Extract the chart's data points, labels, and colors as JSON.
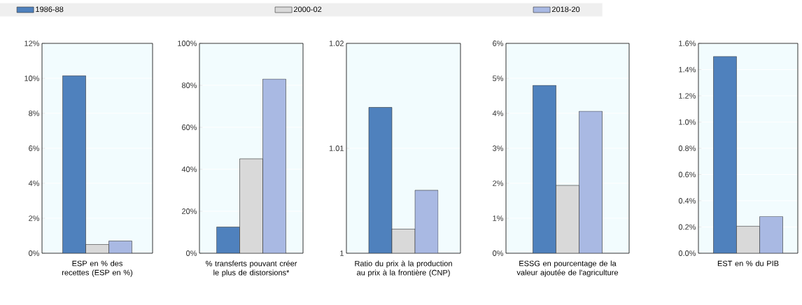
{
  "chart_data": [
    {
      "type": "bar",
      "xlabel": "ESP en % des recettes (ESP en %)",
      "categories": [
        null
      ],
      "legend": "top",
      "grid": "y",
      "series": [
        {
          "name": "1986-88",
          "color": "#4f81bd",
          "values": [
            10.15
          ]
        },
        {
          "name": "2000-02",
          "color": "#d9d9d9",
          "values": [
            0.5
          ]
        },
        {
          "name": "2018-20",
          "color": "#a9b9e3",
          "values": [
            0.7
          ]
        }
      ],
      "ylim": [
        0,
        12
      ],
      "yticks": [
        {
          "value": 0,
          "label": "0%"
        },
        {
          "value": 2,
          "label": "2%"
        },
        {
          "value": 4,
          "label": "4%"
        },
        {
          "value": 6,
          "label": "6%"
        },
        {
          "value": 8,
          "label": "8%"
        },
        {
          "value": 10,
          "label": "10%"
        },
        {
          "value": 12,
          "label": "12%"
        }
      ]
    },
    {
      "type": "bar",
      "xlabel": "% transferts pouvant créer le plus de distorsions*",
      "categories": [
        null
      ],
      "grid": "y",
      "series": [
        {
          "color": "#4f81bd",
          "values": [
            12.5
          ]
        },
        {
          "color": "#d9d9d9",
          "values": [
            45
          ]
        },
        {
          "color": "#a9b9e3",
          "values": [
            83
          ]
        }
      ],
      "ylim": [
        0,
        100
      ],
      "yticks": [
        {
          "value": 0,
          "label": "0%"
        },
        {
          "value": 20,
          "label": "20%"
        },
        {
          "value": 40,
          "label": "40%"
        },
        {
          "value": 60,
          "label": "60%"
        },
        {
          "value": 80,
          "label": "80%"
        },
        {
          "value": 100,
          "label": "100%"
        }
      ]
    },
    {
      "type": "bar",
      "xlabel": "Ratio du prix à la production au prix à la frontière (CNP)",
      "categories": [
        null
      ],
      "grid": "y",
      "series": [
        {
          "color": "#4f81bd",
          "values": [
            1.0139
          ]
        },
        {
          "color": "#d9d9d9",
          "values": [
            1.0023
          ]
        },
        {
          "color": "#a9b9e3",
          "values": [
            1.006
          ]
        }
      ],
      "ylim": [
        1,
        1.02
      ],
      "yticks": [
        1,
        1.01,
        1.02
      ]
    },
    {
      "type": "bar",
      "xlabel": "ESSG en pourcentage de la valeur ajoutée de l'agriculture",
      "categories": [
        null
      ],
      "grid": "y",
      "series": [
        {
          "color": "#4f81bd",
          "values": [
            4.8
          ]
        },
        {
          "color": "#d9d9d9",
          "values": [
            1.94
          ]
        },
        {
          "color": "#a9b9e3",
          "values": [
            4.06
          ]
        }
      ],
      "ylim": [
        0,
        6
      ],
      "yticks": [
        {
          "value": 0,
          "label": "0%"
        },
        {
          "value": 1,
          "label": "1%"
        },
        {
          "value": 2,
          "label": "2%"
        },
        {
          "value": 3,
          "label": "3%"
        },
        {
          "value": 4,
          "label": "4%"
        },
        {
          "value": 5,
          "label": "5%"
        },
        {
          "value": 6,
          "label": "6%"
        }
      ]
    },
    {
      "type": "bar",
      "xlabel": "EST en % du PIB",
      "categories": [
        null
      ],
      "grid": "y",
      "series": [
        {
          "color": "#4f81bd",
          "values": [
            1.5
          ]
        },
        {
          "color": "#d9d9d9",
          "values": [
            0.206
          ]
        },
        {
          "color": "#a9b9e3",
          "values": [
            0.28
          ]
        }
      ],
      "ylim": [
        0,
        1.6
      ],
      "yticks": [
        {
          "value": 0,
          "label": "0.0%"
        },
        {
          "value": 0.2,
          "label": "0.2%"
        },
        {
          "value": 0.4,
          "label": "0.4%"
        },
        {
          "value": 0.6,
          "label": "0.6%"
        },
        {
          "value": 0.8,
          "label": "0.8%"
        },
        {
          "value": 1.0,
          "label": "1.0%"
        },
        {
          "value": 1.2,
          "label": "1.2%"
        },
        {
          "value": 1.4,
          "label": "1.4%"
        },
        {
          "value": 1.6,
          "label": "1.6%"
        }
      ]
    }
  ]
}
